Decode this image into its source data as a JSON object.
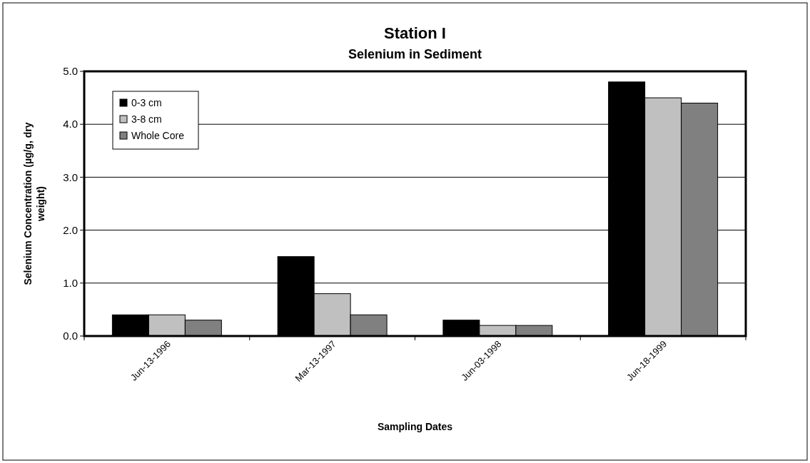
{
  "chart_data": {
    "type": "bar",
    "title": "Station I",
    "subtitle": "Selenium in Sediment",
    "xlabel": "Sampling Dates",
    "ylabel": "Selenium Concentration (µg/g, dry weight)",
    "categories": [
      "Jun-13-1996",
      "Mar-13-1997",
      "Jun-03-1998",
      "Jun-18-1999"
    ],
    "series": [
      {
        "name": "0-3 cm",
        "color": "#000000",
        "values": [
          0.4,
          1.5,
          0.3,
          4.8
        ]
      },
      {
        "name": "3-8 cm",
        "color": "#c0c0c0",
        "values": [
          0.4,
          0.8,
          0.2,
          4.5
        ]
      },
      {
        "name": "Whole Core",
        "color": "#808080",
        "values": [
          0.3,
          0.4,
          0.2,
          4.4
        ]
      }
    ],
    "ylim": [
      0,
      5
    ],
    "yticks": [
      {
        "value": 0,
        "label": "0.0"
      },
      {
        "value": 1,
        "label": "1.0"
      },
      {
        "value": 2,
        "label": "2.0"
      },
      {
        "value": 3,
        "label": "3.0"
      },
      {
        "value": 4,
        "label": "4.0"
      },
      {
        "value": 5,
        "label": "5.0"
      }
    ],
    "grid": "y",
    "legend": "top left"
  }
}
